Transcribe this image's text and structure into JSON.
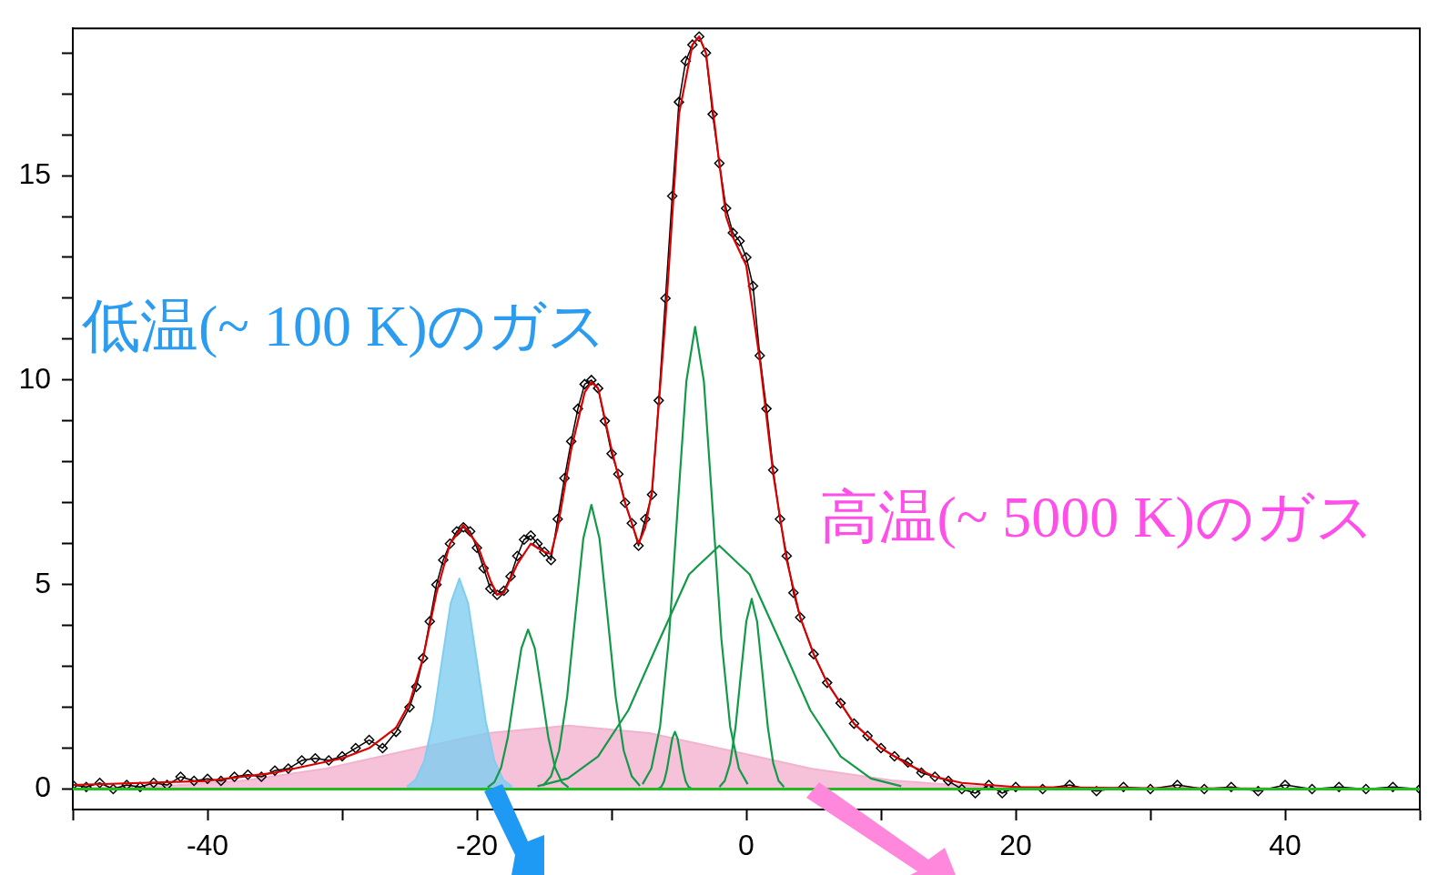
{
  "chart_data": {
    "type": "line",
    "xlim": [
      -50,
      50
    ],
    "ylim": [
      -0.5,
      18.6
    ],
    "xticks": [
      {
        "value": -50,
        "label": null
      },
      -40,
      {
        "value": -30,
        "label": null
      },
      -20,
      {
        "value": -10,
        "label": null
      },
      0,
      {
        "value": 10,
        "label": null
      },
      20,
      {
        "value": 30,
        "label": null
      },
      40,
      {
        "value": 50,
        "label": null
      }
    ],
    "yticks": [
      0,
      {
        "value": 1,
        "label": null
      },
      {
        "value": 2,
        "label": null
      },
      {
        "value": 3,
        "label": null
      },
      {
        "value": 4,
        "label": null
      },
      5,
      {
        "value": 6,
        "label": null
      },
      {
        "value": 7,
        "label": null
      },
      {
        "value": 8,
        "label": null
      },
      {
        "value": 9,
        "label": null
      },
      10,
      {
        "value": 11,
        "label": null
      },
      {
        "value": 12,
        "label": null
      },
      {
        "value": 13,
        "label": null
      },
      {
        "value": 14,
        "label": null
      },
      15,
      {
        "value": 16,
        "label": null
      },
      {
        "value": 17,
        "label": null
      },
      {
        "value": 18,
        "label": null
      }
    ],
    "grid": false,
    "legend": false,
    "ref_lines": [
      {
        "axis": "y",
        "value": 0,
        "color": "#22bb22"
      }
    ],
    "annotations": [
      "低温(~ 100 K)のガス",
      "高温(~ 5000 K)のガス"
    ],
    "series": [
      {
        "type": "area",
        "color": "#f2b3cf",
        "marker": "none",
        "x": [
          -49.2,
          -43.2,
          -37.2,
          -31.2,
          -25.2,
          -19.2,
          -13.2,
          -7.2,
          -1.2,
          4.8,
          10.8,
          16.8,
          22.8
        ],
        "values": [
          0.02,
          0.07,
          0.21,
          0.5,
          0.94,
          1.37,
          1.55,
          1.37,
          0.94,
          0.5,
          0.21,
          0.07,
          0.02
        ]
      },
      {
        "type": "area",
        "color": "#7fcdf0",
        "marker": "none",
        "x": [
          -25.2,
          -24.55,
          -23.9,
          -23.25,
          -22.6,
          -21.95,
          -21.3,
          -20.65,
          -20.0,
          -19.35,
          -18.7,
          -18.05,
          -17.4
        ],
        "values": [
          0.06,
          0.23,
          0.7,
          1.67,
          3.12,
          4.54,
          5.15,
          4.54,
          3.12,
          1.67,
          0.7,
          0.23,
          0.06
        ]
      },
      {
        "color": "#129a48",
        "marker": "none",
        "x": [
          -19.2,
          -18.7,
          -18.2,
          -17.7,
          -17.2,
          -16.7,
          -16.2,
          -15.7,
          -15.2,
          -14.7,
          -14.2,
          -13.7,
          -13.2
        ],
        "values": [
          0.04,
          0.17,
          0.53,
          1.27,
          2.37,
          3.44,
          3.9,
          3.44,
          2.37,
          1.27,
          0.53,
          0.17,
          0.04
        ]
      },
      {
        "color": "#129a48",
        "marker": "none",
        "x": [
          -15.1,
          -14.5,
          -13.9,
          -13.3,
          -12.7,
          -12.1,
          -11.5,
          -10.9,
          -10.3,
          -9.7,
          -9.1,
          -8.5,
          -7.9
        ],
        "values": [
          0.08,
          0.31,
          0.94,
          2.26,
          4.22,
          6.13,
          6.95,
          6.13,
          4.22,
          2.26,
          0.94,
          0.31,
          0.08
        ]
      },
      {
        "color": "#129a48",
        "marker": "none",
        "x": [
          -6.5,
          -6.3,
          -6.1,
          -5.9,
          -5.7,
          -5.5,
          -5.3,
          -5.1,
          -4.9,
          -4.7,
          -4.5,
          -4.3,
          -4.1
        ],
        "values": [
          0.02,
          0.06,
          0.19,
          0.46,
          0.85,
          1.23,
          1.4,
          1.23,
          0.85,
          0.46,
          0.19,
          0.06,
          0.02
        ]
      },
      {
        "color": "#129a48",
        "marker": "none",
        "x": [
          -7.7,
          -7.05,
          -6.4,
          -5.75,
          -5.1,
          -4.45,
          -3.8,
          -3.15,
          -2.5,
          -1.85,
          -1.2,
          -0.55,
          0.1
        ],
        "values": [
          0.12,
          0.5,
          1.53,
          3.67,
          6.86,
          9.97,
          11.3,
          9.97,
          6.86,
          3.67,
          1.53,
          0.5,
          0.12
        ]
      },
      {
        "color": "#129a48",
        "marker": "none",
        "x": [
          -15.5,
          -13.25,
          -11,
          -8.75,
          -6.5,
          -4.25,
          -2,
          0.25,
          2.5,
          4.75,
          7,
          9.25,
          11.5
        ],
        "values": [
          0.07,
          0.26,
          0.8,
          1.93,
          3.61,
          5.25,
          5.95,
          5.25,
          3.61,
          1.93,
          0.8,
          0.26,
          0.07
        ]
      },
      {
        "color": "#129a48",
        "marker": "none",
        "x": [
          -2.0,
          -1.6,
          -1.2,
          -0.8,
          -0.4,
          0,
          0.4,
          0.8,
          1.2,
          1.6,
          2.0,
          2.4,
          2.8
        ],
        "values": [
          0.05,
          0.2,
          0.63,
          1.51,
          2.82,
          4.1,
          4.65,
          4.1,
          2.82,
          1.51,
          0.63,
          0.2,
          0.05
        ]
      },
      {
        "color": "#000000",
        "marker": "diamond",
        "x": [
          -50,
          -49,
          -48,
          -47,
          -46,
          -45,
          -44,
          -43,
          -42,
          -41,
          -40,
          -39,
          -38,
          -37,
          -36,
          -35,
          -34,
          -33,
          -32,
          -31,
          -30,
          -29,
          -28,
          -27,
          -26,
          -25,
          -24.5,
          -24,
          -23.5,
          -23,
          -22.5,
          -22,
          -21.5,
          -21,
          -20.5,
          -20,
          -19.5,
          -19,
          -18.5,
          -18,
          -17.5,
          -17,
          -16.5,
          -16,
          -15.5,
          -15,
          -14.5,
          -14,
          -13.5,
          -13,
          -12.5,
          -12,
          -11.5,
          -11,
          -10.5,
          -10,
          -9.5,
          -9,
          -8.5,
          -8,
          -7.5,
          -7,
          -6.5,
          -6,
          -5.5,
          -5,
          -4.5,
          -4,
          -3.5,
          -3,
          -2.5,
          -2,
          -1.5,
          -1,
          -0.5,
          0,
          0.5,
          1,
          1.5,
          2,
          2.5,
          3,
          3.5,
          4,
          5,
          6,
          7,
          8,
          9,
          10,
          11,
          12,
          13,
          14,
          15,
          16,
          17,
          18,
          19,
          20,
          22,
          24,
          26,
          28,
          30,
          32,
          34,
          36,
          38,
          40,
          42,
          44,
          46,
          48,
          50
        ],
        "values": [
          0.1,
          0.05,
          0.15,
          0,
          0.1,
          0.05,
          0.15,
          0.1,
          0.3,
          0.2,
          0.25,
          0.2,
          0.3,
          0.35,
          0.3,
          0.45,
          0.5,
          0.7,
          0.75,
          0.7,
          0.8,
          1.0,
          1.2,
          1.0,
          1.4,
          2.0,
          2.5,
          3.2,
          4.1,
          5.0,
          5.6,
          6.0,
          6.3,
          6.4,
          6.3,
          5.9,
          5.4,
          4.9,
          4.75,
          4.85,
          5.2,
          5.7,
          6.1,
          6.2,
          6.0,
          5.8,
          5.6,
          6.6,
          7.6,
          8.5,
          9.3,
          9.9,
          10.0,
          9.8,
          9.0,
          8.2,
          7.7,
          7.0,
          6.5,
          5.95,
          6.6,
          7.2,
          9.5,
          12.0,
          14.5,
          16.8,
          17.8,
          18.2,
          18.4,
          18.0,
          16.5,
          15.3,
          14.2,
          13.6,
          13.4,
          13.0,
          12.3,
          10.6,
          9.3,
          7.8,
          6.6,
          5.7,
          4.8,
          4.2,
          3.3,
          2.6,
          2.1,
          1.6,
          1.3,
          1.0,
          0.8,
          0.65,
          0.4,
          0.3,
          0.2,
          0,
          -0.1,
          0.1,
          -0.1,
          0.05,
          0,
          0.1,
          -0.05,
          0.05,
          0,
          0.1,
          0,
          0.05,
          -0.05,
          0.1,
          0,
          0.05,
          0,
          0.05,
          0
        ]
      },
      {
        "color": "#dd0000",
        "marker": "none",
        "x": [
          -50,
          -40,
          -35,
          -30,
          -28,
          -26,
          -25,
          -24,
          -23,
          -22,
          -21,
          -20,
          -19,
          -18.5,
          -18,
          -17,
          -16,
          -15,
          -14.5,
          -14,
          -13,
          -12,
          -11.5,
          -11,
          -10,
          -9,
          -8,
          -7.5,
          -7,
          -6,
          -5,
          -4,
          -3.5,
          -3,
          -2,
          -1.5,
          -1,
          0,
          1,
          2,
          3,
          4,
          5,
          6,
          8,
          10,
          12,
          14,
          16,
          20,
          30,
          50
        ],
        "values": [
          0.1,
          0.2,
          0.4,
          0.75,
          1.0,
          1.5,
          2.1,
          3.2,
          4.8,
          6.0,
          6.45,
          6.0,
          5.1,
          4.75,
          4.8,
          5.5,
          6.0,
          5.8,
          5.75,
          6.4,
          8.3,
          9.7,
          9.95,
          9.8,
          8.3,
          7.0,
          6.0,
          6.4,
          7.3,
          11.5,
          16.5,
          18.2,
          18.4,
          18.0,
          15.3,
          14.0,
          13.5,
          12.8,
          10.5,
          7.7,
          5.6,
          4.2,
          3.3,
          2.6,
          1.6,
          1.0,
          0.6,
          0.3,
          0.15,
          0.05,
          0.02,
          0
        ]
      }
    ]
  }
}
